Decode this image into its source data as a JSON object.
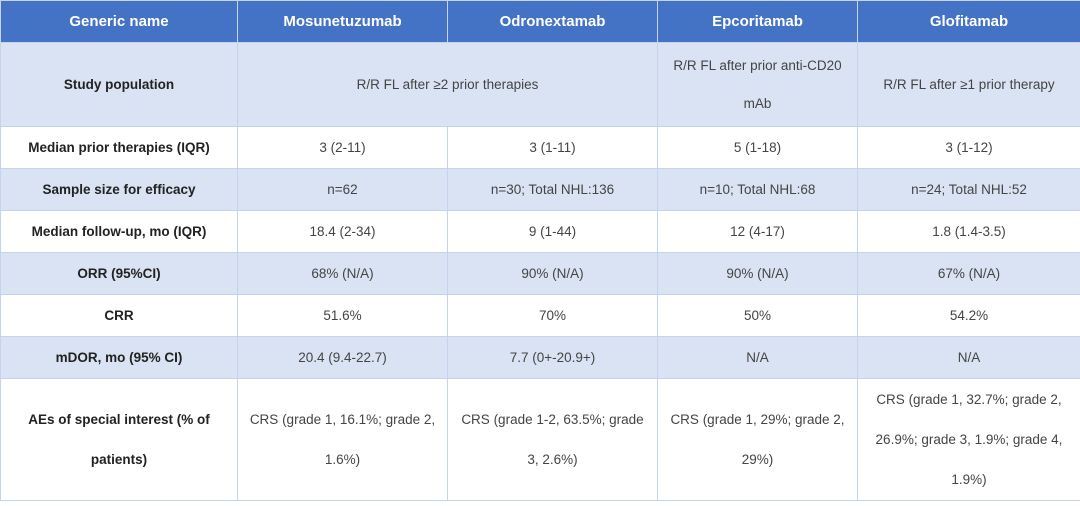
{
  "header": {
    "col0": "Generic name",
    "col1": "Mosunetuzumab",
    "col2": "Odronextamab",
    "col3": "Epcoritamab",
    "col4": "Glofitamab"
  },
  "rows": {
    "study_population": {
      "label": "Study population",
      "mos_odr": "R/R FL after ≥2 prior therapies",
      "epc": "R/R FL after prior anti-CD20 mAb",
      "glo": "R/R FL after ≥1 prior therapy"
    },
    "median_prior": {
      "label": "Median prior therapies (IQR)",
      "mos": "3 (2-11)",
      "odr": "3 (1-11)",
      "epc": "5 (1-18)",
      "glo": "3 (1-12)"
    },
    "sample_size": {
      "label": "Sample size for efficacy",
      "mos": "n=62",
      "odr": "n=30; Total NHL:136",
      "epc": "n=10; Total NHL:68",
      "glo": "n=24; Total NHL:52"
    },
    "follow_up": {
      "label": "Median follow-up, mo (IQR)",
      "mos": "18.4 (2-34)",
      "odr": "9 (1-44)",
      "epc": "12 (4-17)",
      "glo": "1.8 (1.4-3.5)"
    },
    "orr": {
      "label": "ORR (95%CI)",
      "mos": "68% (N/A)",
      "odr": "90% (N/A)",
      "epc": "90% (N/A)",
      "glo": "67% (N/A)"
    },
    "crr": {
      "label": "CRR",
      "mos": "51.6%",
      "odr": "70%",
      "epc": "50%",
      "glo": "54.2%"
    },
    "mdor": {
      "label": "mDOR, mo (95% CI)",
      "mos": "20.4 (9.4-22.7)",
      "odr": "7.7 (0+-20.9+)",
      "epc": "N/A",
      "glo": "N/A"
    },
    "aes": {
      "label": "AEs of special interest (% of patients)",
      "mos": "CRS (grade 1, 16.1%; grade 2, 1.6%)",
      "odr": "CRS (grade 1-2, 63.5%; grade 3, 2.6%)",
      "epc": "CRS (grade 1, 29%; grade 2, 29%)",
      "glo": "CRS (grade 1, 32.7%; grade 2, 26.9%; grade 3, 1.9%; grade 4, 1.9%)"
    }
  }
}
